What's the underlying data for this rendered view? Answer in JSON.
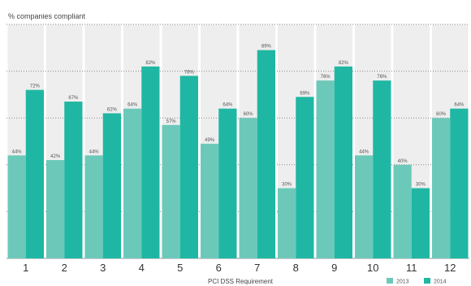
{
  "chart_data": {
    "type": "bar",
    "title": "",
    "ylabel": "% companies compliant",
    "xlabel": "PCI DSS Requirement",
    "categories": [
      "1",
      "2",
      "3",
      "4",
      "5",
      "6",
      "7",
      "8",
      "9",
      "10",
      "11",
      "12"
    ],
    "series": [
      {
        "name": "2013",
        "color": "#6cc9ba",
        "values": [
          44,
          42,
          44,
          64,
          57,
          49,
          60,
          30,
          76,
          44,
          40,
          60
        ],
        "labels": [
          "44%",
          "42%",
          "44%",
          "64%",
          "57%",
          "49%",
          "60%",
          "30%",
          "76%",
          "44%",
          "40%",
          "60%"
        ]
      },
      {
        "name": "2014",
        "color": "#1fb7a3",
        "values": [
          72,
          67,
          62,
          82,
          78,
          64,
          89,
          69,
          82,
          76,
          30,
          64
        ],
        "labels": [
          "72%",
          "67%",
          "62%",
          "82%",
          "78%",
          "64%",
          "89%",
          "69%",
          "82%",
          "76%",
          "30%",
          "64%"
        ]
      }
    ],
    "ylim": [
      0,
      100
    ],
    "grid": true,
    "legend": "bottom-right"
  }
}
